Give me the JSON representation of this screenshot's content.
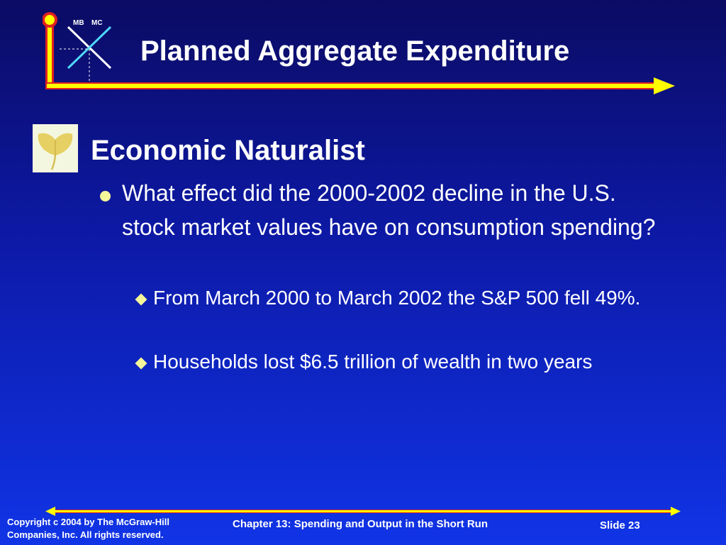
{
  "logo": {
    "label_left": "MB",
    "label_right": "MC",
    "icon": "mb-mc-cross-logo-icon"
  },
  "title": "Planned Aggregate Expenditure",
  "ginkgo_icon": "ginkgo-leaf-icon",
  "heading": "Economic Naturalist",
  "bullet": {
    "text": "What effect did the 2000-2002 decline in the U.S. stock market values have on consumption spending?",
    "sub_items": [
      "From March 2000 to March 2002 the S&P 500 fell 49%.",
      "Households lost $6.5 trillion of wealth in two years"
    ]
  },
  "footer": {
    "copyright_line1": "Copyright c 2004 by The McGraw-Hill",
    "copyright_line2": "Companies, Inc.  All rights reserved.",
    "chapter": "Chapter 13: Spending and Output in the Short Run",
    "slide": "Slide 23"
  },
  "colors": {
    "accent_yellow": "#ffff00",
    "border_red": "#e02020",
    "bullet": "#f5f59a",
    "logo_line": "#4fd8ff"
  }
}
